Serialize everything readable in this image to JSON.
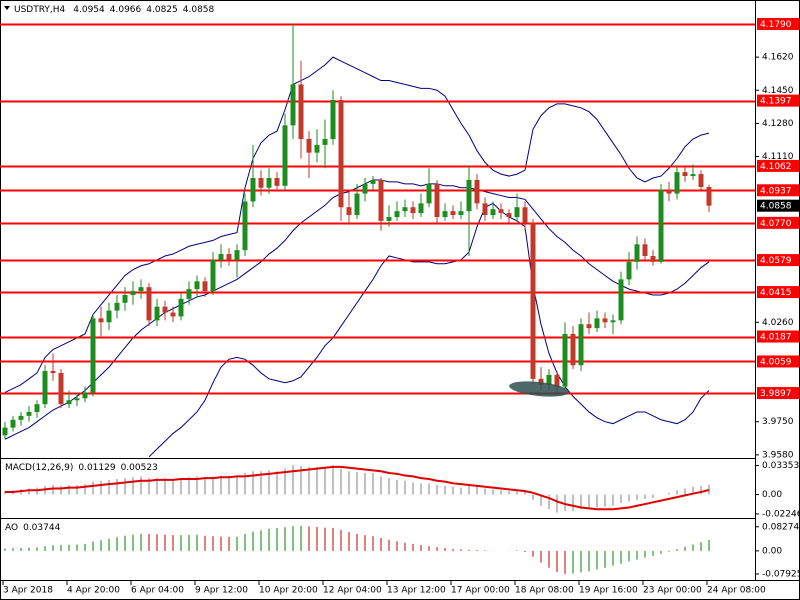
{
  "chart_data": {
    "type": "candlestick",
    "symbol": "USDTRY,H4",
    "bull_color": "#1e8c1e",
    "bear_color": "#c0392b",
    "ylim": [
      3.9569,
      4.1913
    ],
    "yticks": [
      {
        "value": 4.162,
        "label": "4.1620"
      },
      {
        "value": 4.145,
        "label": "4.1450"
      },
      {
        "value": 4.128,
        "label": "4.1280"
      },
      {
        "value": 4.111,
        "label": "4.1110"
      },
      {
        "value": 4.026,
        "label": "4.0260"
      },
      {
        "value": 3.975,
        "label": "3.9750"
      },
      {
        "value": 3.958,
        "label": "3.9580"
      }
    ],
    "levels": [
      {
        "value": 4.179,
        "label": "4.1790"
      },
      {
        "value": 4.1397,
        "label": "4.1397"
      },
      {
        "value": 4.1062,
        "label": "4.1062"
      },
      {
        "value": 4.0937,
        "label": "4.0937"
      },
      {
        "value": 4.077,
        "label": "4.0770"
      },
      {
        "value": 4.0579,
        "label": "4.0579"
      },
      {
        "value": 4.0415,
        "label": "4.0415"
      },
      {
        "value": 4.0187,
        "label": "4.0187"
      },
      {
        "value": 4.0059,
        "label": "4.0059"
      },
      {
        "value": 3.9897,
        "label": "3.9897"
      }
    ],
    "level_color": "#ff0000",
    "categories": [
      "3 Apr 2018",
      null,
      null,
      null,
      null,
      null,
      null,
      null,
      "4 Apr 20:00",
      null,
      null,
      null,
      null,
      null,
      null,
      null,
      "6 Apr 04:00",
      null,
      null,
      null,
      null,
      null,
      null,
      null,
      "9 Apr 12:00",
      null,
      null,
      null,
      null,
      null,
      null,
      null,
      "10 Apr 20:00",
      null,
      null,
      null,
      null,
      null,
      null,
      null,
      "12 Apr 04:00",
      null,
      null,
      null,
      null,
      null,
      null,
      null,
      "13 Apr 12:00",
      null,
      null,
      null,
      null,
      null,
      null,
      null,
      "17 Apr 00:00",
      null,
      null,
      null,
      null,
      null,
      null,
      null,
      "18 Apr 08:00",
      null,
      null,
      null,
      null,
      null,
      null,
      null,
      "19 Apr 16:00",
      null,
      null,
      null,
      null,
      null,
      null,
      null,
      "23 Apr 00:00",
      null,
      null,
      null,
      null,
      null,
      null,
      null,
      "24 Apr 08:00"
    ],
    "ohlc": [
      [
        3.968,
        3.975,
        3.966,
        3.972
      ],
      [
        3.972,
        3.978,
        3.97,
        3.976
      ],
      [
        3.976,
        3.98,
        3.973,
        3.978
      ],
      [
        3.978,
        3.983,
        3.975,
        3.98
      ],
      [
        3.98,
        3.986,
        3.977,
        3.984
      ],
      [
        3.984,
        4.004,
        3.982,
        4.001
      ],
      [
        4.001,
        4.01,
        3.996,
        4.0
      ],
      [
        4.0,
        4.002,
        3.982,
        3.984
      ],
      [
        3.984,
        3.991,
        3.982,
        3.986
      ],
      [
        3.986,
        3.99,
        3.983,
        3.987
      ],
      [
        3.987,
        3.993,
        3.985,
        3.99
      ],
      [
        3.99,
        4.03,
        3.988,
        4.028
      ],
      [
        4.028,
        4.034,
        4.018,
        4.026
      ],
      [
        4.026,
        4.036,
        4.022,
        4.032
      ],
      [
        4.032,
        4.04,
        4.028,
        4.036
      ],
      [
        4.036,
        4.044,
        4.032,
        4.04
      ],
      [
        4.04,
        4.047,
        4.035,
        4.042
      ],
      [
        4.042,
        4.048,
        4.038,
        4.044
      ],
      [
        4.044,
        4.046,
        4.024,
        4.027
      ],
      [
        4.027,
        4.038,
        4.024,
        4.034
      ],
      [
        4.034,
        4.037,
        4.027,
        4.031
      ],
      [
        4.031,
        4.034,
        4.026,
        4.029
      ],
      [
        4.029,
        4.041,
        4.027,
        4.038
      ],
      [
        4.038,
        4.047,
        4.035,
        4.043
      ],
      [
        4.043,
        4.05,
        4.039,
        4.047
      ],
      [
        4.047,
        4.049,
        4.039,
        4.042
      ],
      [
        4.042,
        4.062,
        4.04,
        4.058
      ],
      [
        4.058,
        4.066,
        4.054,
        4.061
      ],
      [
        4.061,
        4.064,
        4.055,
        4.058
      ],
      [
        4.058,
        4.066,
        4.049,
        4.063
      ],
      [
        4.063,
        4.092,
        4.06,
        4.088
      ],
      [
        4.088,
        4.117,
        4.085,
        4.1
      ],
      [
        4.1,
        4.104,
        4.091,
        4.095
      ],
      [
        4.095,
        4.105,
        4.092,
        4.1
      ],
      [
        4.1,
        4.103,
        4.093,
        4.096
      ],
      [
        4.096,
        4.133,
        4.094,
        4.127
      ],
      [
        4.127,
        4.179,
        4.12,
        4.148
      ],
      [
        4.148,
        4.16,
        4.11,
        4.12
      ],
      [
        4.12,
        4.124,
        4.1,
        4.113
      ],
      [
        4.113,
        4.125,
        4.108,
        4.117
      ],
      [
        4.117,
        4.13,
        4.105,
        4.12
      ],
      [
        4.12,
        4.145,
        4.117,
        4.14
      ],
      [
        4.14,
        4.142,
        4.078,
        4.085
      ],
      [
        4.085,
        4.094,
        4.076,
        4.081
      ],
      [
        4.081,
        4.097,
        4.079,
        4.092
      ],
      [
        4.092,
        4.1,
        4.088,
        4.097
      ],
      [
        4.097,
        4.101,
        4.094,
        4.099
      ],
      [
        4.099,
        4.1,
        4.073,
        4.078
      ],
      [
        4.078,
        4.086,
        4.075,
        4.08
      ],
      [
        4.08,
        4.088,
        4.078,
        4.083
      ],
      [
        4.083,
        4.089,
        4.08,
        4.085
      ],
      [
        4.085,
        4.088,
        4.079,
        4.082
      ],
      [
        4.082,
        4.092,
        4.08,
        4.087
      ],
      [
        4.087,
        4.105,
        4.085,
        4.097
      ],
      [
        4.097,
        4.099,
        4.077,
        4.08
      ],
      [
        4.08,
        4.087,
        4.078,
        4.083
      ],
      [
        4.083,
        4.086,
        4.079,
        4.081
      ],
      [
        4.081,
        4.088,
        4.079,
        4.083
      ],
      [
        4.083,
        4.106,
        4.06,
        4.099
      ],
      [
        4.099,
        4.102,
        4.084,
        4.087
      ],
      [
        4.087,
        4.09,
        4.078,
        4.081
      ],
      [
        4.081,
        4.088,
        4.079,
        4.084
      ],
      [
        4.084,
        4.087,
        4.079,
        4.082
      ],
      [
        4.082,
        4.084,
        4.077,
        4.08
      ],
      [
        4.08,
        4.092,
        4.078,
        4.085
      ],
      [
        4.085,
        4.088,
        4.073,
        4.077
      ],
      [
        4.077,
        4.079,
        3.994,
        3.997
      ],
      [
        3.997,
        4.003,
        3.991,
        3.994
      ],
      [
        3.994,
        4.002,
        3.991,
        3.999
      ],
      [
        3.999,
        4.001,
        3.99,
        3.993
      ],
      [
        3.993,
        4.026,
        3.992,
        4.02
      ],
      [
        4.02,
        4.024,
        4.002,
        4.004
      ],
      [
        4.004,
        4.028,
        4.001,
        4.025
      ],
      [
        4.025,
        4.031,
        4.02,
        4.023
      ],
      [
        4.023,
        4.032,
        4.021,
        4.028
      ],
      [
        4.028,
        4.031,
        4.023,
        4.026
      ],
      [
        4.026,
        4.03,
        4.02,
        4.027
      ],
      [
        4.027,
        4.052,
        4.025,
        4.048
      ],
      [
        4.048,
        4.062,
        4.045,
        4.057
      ],
      [
        4.057,
        4.07,
        4.053,
        4.066
      ],
      [
        4.066,
        4.069,
        4.057,
        4.06
      ],
      [
        4.06,
        4.063,
        4.055,
        4.057
      ],
      [
        4.057,
        4.097,
        4.056,
        4.094
      ],
      [
        4.094,
        4.098,
        4.088,
        4.092
      ],
      [
        4.092,
        4.106,
        4.089,
        4.103
      ],
      [
        4.103,
        4.106,
        4.098,
        4.101
      ],
      [
        4.101,
        4.107,
        4.099,
        4.102
      ],
      [
        4.102,
        4.104,
        4.093,
        4.0954
      ],
      [
        4.0954,
        4.0966,
        4.0825,
        4.0858
      ]
    ],
    "bands": {
      "color": "#000080",
      "upper": [
        3.99,
        3.992,
        3.994,
        3.997,
        4.0,
        4.008,
        4.012,
        4.014,
        4.016,
        4.018,
        4.02,
        4.03,
        4.035,
        4.04,
        4.045,
        4.05,
        4.053,
        4.055,
        4.056,
        4.058,
        4.06,
        4.061,
        4.063,
        4.065,
        4.066,
        4.067,
        4.068,
        4.07,
        4.071,
        4.072,
        4.095,
        4.11,
        4.118,
        4.122,
        4.124,
        4.135,
        4.148,
        4.15,
        4.152,
        4.155,
        4.158,
        4.162,
        4.16,
        4.158,
        4.156,
        4.154,
        4.152,
        4.15,
        4.15,
        4.149,
        4.148,
        4.147,
        4.146,
        4.146,
        4.145,
        4.142,
        4.135,
        4.128,
        4.122,
        4.114,
        4.108,
        4.104,
        4.102,
        4.101,
        4.102,
        4.104,
        4.125,
        4.132,
        4.136,
        4.138,
        4.138,
        4.137,
        4.136,
        4.134,
        4.13,
        4.124,
        4.118,
        4.112,
        4.105,
        4.1,
        4.098,
        4.1,
        4.101,
        4.105,
        4.11,
        4.116,
        4.12,
        4.122,
        4.123
      ],
      "middle": [
        3.966,
        3.968,
        3.97,
        3.972,
        3.975,
        3.978,
        3.981,
        3.983,
        3.985,
        3.988,
        3.991,
        3.995,
        3.999,
        4.003,
        4.008,
        4.013,
        4.018,
        4.022,
        4.025,
        4.028,
        4.031,
        4.033,
        4.035,
        4.037,
        4.039,
        4.04,
        4.042,
        4.044,
        4.046,
        4.048,
        4.051,
        4.054,
        4.057,
        4.061,
        4.064,
        4.068,
        4.073,
        4.077,
        4.08,
        4.083,
        4.086,
        4.09,
        4.092,
        4.093,
        4.095,
        4.097,
        4.099,
        4.099,
        4.098,
        4.098,
        4.097,
        4.097,
        4.096,
        4.097,
        4.097,
        4.096,
        4.096,
        4.095,
        4.095,
        4.094,
        4.093,
        4.092,
        4.091,
        4.09,
        4.09,
        4.089,
        4.084,
        4.079,
        4.074,
        4.07,
        4.067,
        4.063,
        4.06,
        4.056,
        4.053,
        4.05,
        4.047,
        4.045,
        4.043,
        4.042,
        4.041,
        4.04,
        4.04,
        4.041,
        4.043,
        4.046,
        4.05,
        4.054,
        4.057
      ],
      "lower": [
        null,
        null,
        null,
        null,
        null,
        null,
        null,
        null,
        null,
        null,
        null,
        null,
        null,
        null,
        null,
        null,
        null,
        null,
        3.957,
        3.961,
        3.965,
        3.969,
        3.972,
        3.976,
        3.98,
        3.986,
        3.995,
        4.003,
        4.007,
        4.008,
        4.007,
        4.004,
        4.0,
        3.997,
        3.996,
        3.995,
        3.996,
        3.998,
        4.003,
        4.008,
        4.014,
        4.018,
        4.024,
        4.03,
        4.036,
        4.042,
        4.048,
        4.055,
        4.06,
        4.059,
        4.058,
        4.057,
        4.057,
        4.057,
        4.056,
        4.056,
        4.057,
        4.058,
        4.062,
        4.075,
        4.085,
        4.087,
        4.083,
        4.08,
        4.078,
        4.075,
        4.045,
        4.025,
        4.01,
        4.0,
        3.993,
        3.988,
        3.984,
        3.98,
        3.977,
        3.975,
        3.974,
        3.976,
        3.978,
        3.98,
        3.98,
        3.978,
        3.976,
        3.975,
        3.974,
        3.976,
        3.98,
        3.987,
        3.991
      ]
    },
    "macd": {
      "label": "MACD(12,26,9)",
      "hist_color": "#808080",
      "signal_color": "#e00000",
      "ylim": [
        -0.026,
        0.04
      ],
      "yticks": [
        0.03353,
        {
          "value": 0,
          "label": "0.00"
        },
        -0.02246
      ],
      "hist": [
        0.004,
        0.005,
        0.006,
        0.007,
        0.008,
        0.01,
        0.011,
        0.01,
        0.011,
        0.011,
        0.012,
        0.015,
        0.016,
        0.017,
        0.018,
        0.019,
        0.02,
        0.021,
        0.019,
        0.019,
        0.019,
        0.018,
        0.019,
        0.02,
        0.021,
        0.02,
        0.021,
        0.022,
        0.022,
        0.022,
        0.025,
        0.027,
        0.027,
        0.028,
        0.027,
        0.03,
        0.034,
        0.033,
        0.032,
        0.032,
        0.032,
        0.034,
        0.03,
        0.027,
        0.026,
        0.025,
        0.025,
        0.021,
        0.019,
        0.017,
        0.016,
        0.014,
        0.013,
        0.013,
        0.011,
        0.01,
        0.009,
        0.008,
        0.01,
        0.009,
        0.007,
        0.006,
        0.005,
        0.004,
        0.004,
        0.003,
        -0.006,
        -0.013,
        -0.017,
        -0.021,
        -0.019,
        -0.019,
        -0.017,
        -0.016,
        -0.015,
        -0.014,
        -0.013,
        -0.01,
        -0.008,
        -0.006,
        -0.005,
        -0.004,
        0.0,
        0.002,
        0.005,
        0.007,
        0.009,
        0.01,
        0.01129
      ],
      "signal": [
        0.003,
        0.003,
        0.004,
        0.005,
        0.005,
        0.006,
        0.007,
        0.007,
        0.008,
        0.008,
        0.009,
        0.01,
        0.011,
        0.012,
        0.013,
        0.014,
        0.015,
        0.016,
        0.016,
        0.017,
        0.017,
        0.017,
        0.018,
        0.018,
        0.018,
        0.019,
        0.019,
        0.02,
        0.02,
        0.021,
        0.021,
        0.022,
        0.023,
        0.024,
        0.025,
        0.026,
        0.027,
        0.028,
        0.029,
        0.03,
        0.031,
        0.032,
        0.032,
        0.031,
        0.03,
        0.029,
        0.028,
        0.027,
        0.025,
        0.024,
        0.022,
        0.021,
        0.019,
        0.018,
        0.016,
        0.015,
        0.013,
        0.012,
        0.011,
        0.01,
        0.009,
        0.008,
        0.007,
        0.006,
        0.005,
        0.004,
        0.002,
        -0.001,
        -0.004,
        -0.008,
        -0.011,
        -0.013,
        -0.015,
        -0.016,
        -0.017,
        -0.017,
        -0.017,
        -0.016,
        -0.015,
        -0.013,
        -0.011,
        -0.009,
        -0.007,
        -0.005,
        -0.003,
        -0.001,
        0.001,
        0.003,
        0.00523
      ]
    },
    "ao": {
      "label": "AO",
      "up_color": "#008000",
      "down_color": "#c00000",
      "ylim": [
        -0.1,
        0.106
      ],
      "yticks": [
        0.08274,
        {
          "value": 0,
          "label": "0.00"
        },
        -0.07925
      ],
      "values": [
        0.008,
        0.009,
        0.01,
        0.011,
        0.012,
        0.016,
        0.019,
        0.02,
        0.021,
        0.022,
        0.024,
        0.032,
        0.037,
        0.042,
        0.047,
        0.052,
        0.056,
        0.059,
        0.058,
        0.057,
        0.056,
        0.054,
        0.054,
        0.055,
        0.056,
        0.052,
        0.05,
        0.049,
        0.048,
        0.049,
        0.058,
        0.066,
        0.071,
        0.076,
        0.078,
        0.081,
        0.085,
        0.086,
        0.084,
        0.082,
        0.08,
        0.079,
        0.072,
        0.065,
        0.058,
        0.054,
        0.05,
        0.044,
        0.038,
        0.033,
        0.028,
        0.024,
        0.02,
        0.016,
        0.013,
        0.01,
        0.007,
        0.005,
        0.004,
        0.003,
        0.002,
        0.001,
        0.0,
        0.001,
        0.002,
        -0.004,
        -0.02,
        -0.04,
        -0.058,
        -0.072,
        -0.08,
        -0.078,
        -0.074,
        -0.07,
        -0.064,
        -0.058,
        -0.051,
        -0.044,
        -0.036,
        -0.03,
        -0.023,
        -0.017,
        -0.01,
        -0.003,
        0.006,
        0.014,
        0.022,
        0.03,
        0.03744
      ]
    }
  }
}
